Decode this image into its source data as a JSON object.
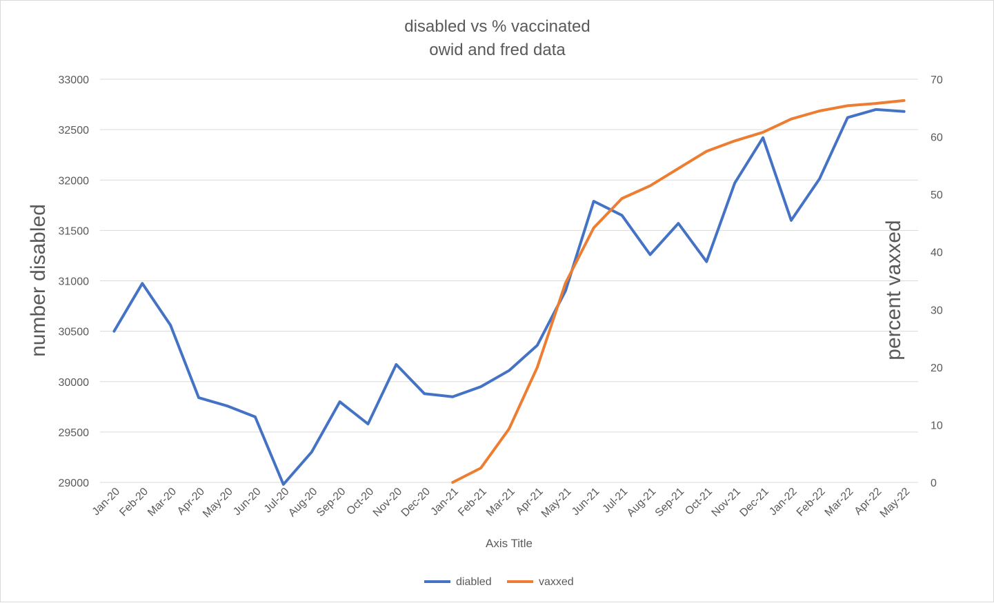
{
  "chart_data": {
    "type": "line",
    "title": "disabled vs % vaccinated",
    "subtitle": "owid and fred data",
    "xlabel": "Axis Title",
    "ylabel_left": "number disabled",
    "ylabel_right": "percent vaxxed",
    "categories": [
      "Jan-20",
      "Feb-20",
      "Mar-20",
      "Apr-20",
      "May-20",
      "Jun-20",
      "Jul-20",
      "Aug-20",
      "Sep-20",
      "Oct-20",
      "Nov-20",
      "Dec-20",
      "Jan-21",
      "Feb-21",
      "Mar-21",
      "Apr-21",
      "May-21",
      "Jun-21",
      "Jul-21",
      "Aug-21",
      "Sep-21",
      "Oct-21",
      "Nov-21",
      "Dec-21",
      "Jan-22",
      "Feb-22",
      "Mar-22",
      "Apr-22",
      "May-22"
    ],
    "ylim_left": [
      29000,
      33000
    ],
    "yticks_left": [
      29000,
      29500,
      30000,
      30500,
      31000,
      31500,
      32000,
      32500,
      33000
    ],
    "ylim_right": [
      0,
      70
    ],
    "yticks_right": [
      0,
      10,
      20,
      30,
      40,
      50,
      60,
      70
    ],
    "grid": true,
    "legend_position": "bottom",
    "series": [
      {
        "name": "diabled",
        "axis": "left",
        "color": "#4472c4",
        "values": [
          30500,
          30975,
          30560,
          29840,
          29760,
          29650,
          28980,
          29300,
          29800,
          29580,
          30170,
          29880,
          29850,
          29950,
          30110,
          30360,
          30900,
          31790,
          31650,
          31260,
          31570,
          31190,
          31970,
          32420,
          31600,
          32010,
          32620,
          32700,
          32680
        ]
      },
      {
        "name": "vaxxed",
        "axis": "right",
        "color": "#ed7d31",
        "values": [
          null,
          null,
          null,
          null,
          null,
          null,
          null,
          null,
          null,
          null,
          null,
          null,
          0.0,
          2.5,
          9.3,
          20.0,
          34.6,
          44.2,
          49.3,
          51.5,
          54.5,
          57.5,
          59.3,
          60.8,
          63.1,
          64.5,
          65.4,
          65.8,
          66.3
        ]
      }
    ]
  }
}
